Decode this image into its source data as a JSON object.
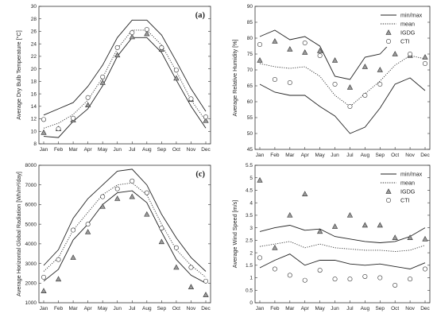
{
  "chart_data": [
    {
      "id": "a",
      "type": "line",
      "letter": "(a)",
      "title": "",
      "xlabel": "",
      "ylabel": "Average Dry Bulb Temperature [°C]",
      "categories": [
        "Jan",
        "Feb",
        "Mar",
        "Apr",
        "May",
        "Jun",
        "Jul",
        "Aug",
        "Sep",
        "Oct",
        "Nov",
        "Dec"
      ],
      "ylim": [
        8,
        30
      ],
      "yticks": [
        8,
        10,
        12,
        14,
        16,
        18,
        20,
        22,
        24,
        26,
        28,
        30
      ],
      "series": [
        {
          "name": "",
          "role": "max",
          "style": "solid",
          "values": [
            12.6,
            13.6,
            14.6,
            17.2,
            20.6,
            25.0,
            27.8,
            27.8,
            25.4,
            21.2,
            16.8,
            13.2
          ]
        },
        {
          "name": "",
          "role": "mean",
          "style": "dotted",
          "values": [
            10.5,
            11.3,
            12.7,
            15.0,
            18.6,
            23.2,
            26.2,
            26.2,
            23.8,
            19.6,
            15.0,
            11.7
          ]
        },
        {
          "name": "",
          "role": "min",
          "style": "solid",
          "values": [
            9.2,
            9.0,
            11.6,
            13.6,
            17.3,
            22.0,
            25.0,
            25.0,
            22.6,
            18.2,
            14.0,
            10.5
          ]
        },
        {
          "name": "",
          "role": "IGDG",
          "style": "triangle",
          "values": [
            9.8,
            10.4,
            11.8,
            14.2,
            17.8,
            22.2,
            25.1,
            25.6,
            23.1,
            18.5,
            15.1,
            11.7
          ]
        },
        {
          "name": "",
          "role": "CTI",
          "style": "circle",
          "values": [
            11.9,
            10.4,
            12.1,
            15.4,
            18.7,
            23.4,
            25.8,
            26.3,
            23.4,
            19.8,
            15.2,
            12.3
          ]
        }
      ],
      "legend": false
    },
    {
      "id": "b",
      "type": "line",
      "letter": "(b)",
      "title": "",
      "xlabel": "",
      "ylabel": "Average Relative Humidity [%]",
      "categories": [
        "Jan",
        "Feb",
        "Mar",
        "Apr",
        "May",
        "Jun",
        "Jul",
        "Aug",
        "Sep",
        "Oct",
        "Nov",
        "Dec"
      ],
      "ylim": [
        45,
        90
      ],
      "yticks": [
        45,
        50,
        55,
        60,
        65,
        70,
        75,
        80,
        85,
        90
      ],
      "series": [
        {
          "name": "min/max",
          "role": "max",
          "style": "solid",
          "values": [
            80.5,
            82.5,
            79.5,
            80.5,
            77.5,
            68.0,
            67.0,
            74.0,
            75.0,
            80.0,
            83.5,
            84.0
          ]
        },
        {
          "name": "",
          "role": "max2",
          "style": "solid",
          "values": [
            65.5,
            63.0,
            62.0,
            62.0,
            58.5,
            55.5,
            50.0,
            52.0,
            58.0,
            65.5,
            67.5,
            63.5
          ]
        },
        {
          "name": "mean",
          "role": "mean",
          "style": "dotted",
          "values": [
            72.0,
            71.0,
            70.5,
            71.0,
            68.0,
            62.0,
            58.5,
            62.5,
            66.5,
            71.5,
            74.5,
            73.5
          ]
        },
        {
          "name": "IGDG",
          "role": "IGDG",
          "style": "triangle",
          "values": [
            73.0,
            79.0,
            76.5,
            75.5,
            76.0,
            73.0,
            64.5,
            71.0,
            70.0,
            75.0,
            74.5,
            74.0
          ]
        },
        {
          "name": "CTI",
          "role": "CTI",
          "style": "circle",
          "values": [
            78.0,
            67.0,
            66.0,
            78.5,
            74.5,
            65.5,
            58.5,
            62.0,
            65.5,
            78.0,
            75.0,
            72.0
          ]
        }
      ],
      "legend": true,
      "legend_position": "top-right"
    },
    {
      "id": "c",
      "type": "line",
      "letter": "(c)",
      "title": "",
      "xlabel": "",
      "ylabel": "Average Horizontal Global Radiation [Wh/m²/day]",
      "categories": [
        "Jan",
        "Feb",
        "Mar",
        "Apr",
        "May",
        "Jun",
        "Jul",
        "Aug",
        "Sep",
        "Oct",
        "Nov",
        "Dec"
      ],
      "ylim": [
        1000,
        8000
      ],
      "yticks": [
        1000,
        2000,
        3000,
        4000,
        5000,
        6000,
        7000,
        8000
      ],
      "series": [
        {
          "name": "",
          "role": "max",
          "style": "solid",
          "values": [
            2900,
            3700,
            5300,
            6300,
            7000,
            7700,
            7800,
            7000,
            5500,
            4300,
            3300,
            2600
          ]
        },
        {
          "name": "",
          "role": "mean",
          "style": "dotted",
          "values": [
            2600,
            3300,
            4700,
            5600,
            6500,
            7000,
            7100,
            6500,
            5000,
            3700,
            2900,
            2300
          ]
        },
        {
          "name": "",
          "role": "min",
          "style": "solid",
          "values": [
            2100,
            2700,
            4200,
            5000,
            6000,
            6600,
            6700,
            6100,
            4600,
            3200,
            2400,
            2000
          ]
        },
        {
          "name": "",
          "role": "IGDG",
          "style": "triangle",
          "values": [
            1600,
            2200,
            3300,
            4600,
            5900,
            6300,
            6400,
            5500,
            4100,
            2800,
            1800,
            1400
          ]
        },
        {
          "name": "",
          "role": "CTI",
          "style": "circle",
          "values": [
            2300,
            3200,
            4700,
            5000,
            6400,
            6800,
            7200,
            6600,
            4800,
            3800,
            2800,
            2100
          ]
        }
      ],
      "legend": false
    },
    {
      "id": "d",
      "type": "line",
      "letter": "(d)",
      "title": "",
      "xlabel": "",
      "ylabel": "Average Wind Speed [m/s]",
      "categories": [
        "Jan",
        "Feb",
        "Mar",
        "Apr",
        "May",
        "Jun",
        "Jul",
        "Aug",
        "Sep",
        "Oct",
        "Nov",
        "Dec"
      ],
      "ylim": [
        0,
        5.5
      ],
      "yticks": [
        0,
        0.5,
        1,
        1.5,
        2,
        2.5,
        3,
        3.5,
        4,
        4.5,
        5,
        5.5
      ],
      "series": [
        {
          "name": "min/max",
          "role": "max",
          "style": "solid",
          "values": [
            2.85,
            3.0,
            3.1,
            2.9,
            2.95,
            2.65,
            2.55,
            2.45,
            2.4,
            2.45,
            2.65,
            3.0
          ]
        },
        {
          "name": "",
          "role": "min",
          "style": "solid",
          "values": [
            1.4,
            1.7,
            1.95,
            1.5,
            1.7,
            1.7,
            1.55,
            1.5,
            1.55,
            1.45,
            1.35,
            1.6
          ]
        },
        {
          "name": "mean",
          "role": "mean",
          "style": "dotted",
          "values": [
            2.25,
            2.35,
            2.45,
            2.2,
            2.35,
            2.2,
            2.15,
            2.1,
            2.1,
            2.05,
            2.1,
            2.3
          ]
        },
        {
          "name": "IGDG",
          "role": "IGDG",
          "style": "triangle",
          "values": [
            4.9,
            2.2,
            3.5,
            4.35,
            2.85,
            3.05,
            3.5,
            3.1,
            3.1,
            2.6,
            2.6,
            2.55
          ]
        },
        {
          "name": "CTI",
          "role": "CTI",
          "style": "circle",
          "values": [
            1.8,
            1.35,
            1.1,
            0.9,
            1.3,
            0.95,
            0.95,
            1.05,
            1.0,
            0.7,
            0.95,
            1.35
          ]
        }
      ],
      "legend": true,
      "legend_position": "top-right"
    }
  ],
  "legend_entries": {
    "b": [
      {
        "label": "min/max",
        "marker": "solid"
      },
      {
        "label": "mean",
        "marker": "dotted"
      },
      {
        "label": "IGDG",
        "marker": "triangle"
      },
      {
        "label": "CTI",
        "marker": "circle"
      }
    ],
    "d": [
      {
        "label": "min/max",
        "marker": "solid"
      },
      {
        "label": "mean",
        "marker": "dotted"
      },
      {
        "label": "IGDG",
        "marker": "triangle"
      },
      {
        "label": "CTI",
        "marker": "circle"
      }
    ]
  },
  "colors": {
    "line": "#222222",
    "mean": "#333333",
    "triangle_fill": "#9a9a9a",
    "circle_fill": "#ffffff",
    "marker_stroke": "#333333"
  }
}
